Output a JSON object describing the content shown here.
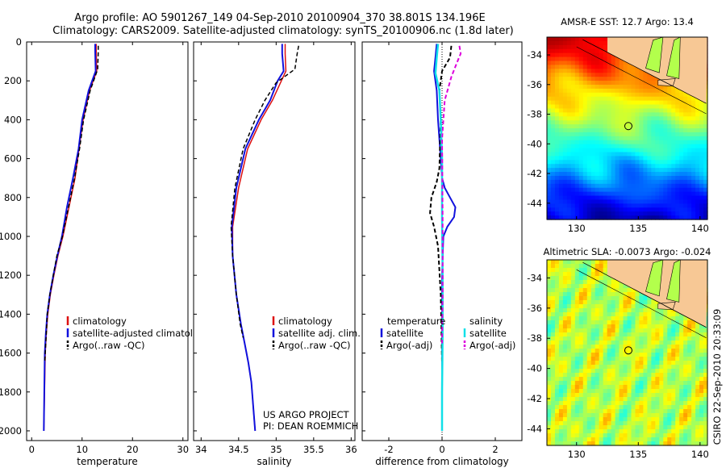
{
  "figure": {
    "title_line1": "Argo profile: AO 5901267_149 04-Sep-2010 20100904_370 38.801S 134.196E",
    "title_line2": "Climatology: CARS2009. Satellite-adjusted climatology: synTS_20100906.nc (1.8d later)",
    "credit": "CSIRO 22-Sep-2010 20:33:09"
  },
  "colors": {
    "climatology": "#dd1111",
    "satellite": "#1111dd",
    "argo": "#000000",
    "salinity_satellite": "#11e0e8",
    "salinity_argo": "#dd00dd",
    "land": "#f7c895"
  },
  "chart_data": [
    {
      "type": "line",
      "xlabel": "temperature",
      "ylabel": "",
      "xlim": [
        -1,
        31
      ],
      "ylim": [
        2050,
        0
      ],
      "xticks": [
        0,
        10,
        20,
        30
      ],
      "xtick_labels": [
        "0",
        "10",
        "20",
        "30"
      ],
      "yticks": [
        0,
        200,
        400,
        600,
        800,
        1000,
        1200,
        1400,
        1600,
        1800,
        2000
      ],
      "ytick_labels": [
        "0",
        "200",
        "400",
        "600",
        "800",
        "1000",
        "1200",
        "1400",
        "1600",
        "1800",
        "2000"
      ],
      "legend": {
        "position": "lower-right",
        "entries": [
          "climatology",
          "satellite-adjusted climatology",
          "Argo(..raw -QC)"
        ]
      },
      "series": [
        {
          "name": "climatology",
          "color": "#dd1111",
          "dash": "",
          "width": 1.5,
          "x": [
            12.8,
            12.8,
            12.9,
            11.5,
            10.2,
            9.4,
            8.6,
            7.4,
            6.2,
            5.2,
            4.4,
            3.7,
            3.2,
            2.9,
            2.7,
            2.55,
            2.4
          ],
          "y": [
            10,
            50,
            150,
            250,
            400,
            550,
            700,
            850,
            1000,
            1100,
            1200,
            1300,
            1400,
            1500,
            1600,
            1800,
            2000
          ]
        },
        {
          "name": "satellite-adjusted climatology",
          "color": "#1111dd",
          "dash": "",
          "width": 2,
          "x": [
            12.6,
            12.6,
            12.7,
            11.3,
            10.0,
            9.3,
            8.2,
            7.0,
            6.0,
            5.1,
            4.3,
            3.6,
            3.1,
            2.8,
            2.6,
            2.5,
            2.4
          ],
          "y": [
            10,
            50,
            150,
            250,
            400,
            550,
            700,
            850,
            1000,
            1100,
            1200,
            1300,
            1400,
            1500,
            1600,
            1800,
            2000
          ]
        },
        {
          "name": "Argo(..raw -QC)",
          "color": "#000000",
          "dash": "5,3",
          "width": 1.5,
          "x": [
            13.2,
            13.2,
            13.1,
            11.6,
            10.3,
            9.5,
            8.5,
            7.3,
            6.1,
            5.0,
            4.3,
            3.6,
            3.1,
            2.9,
            2.7,
            2.6
          ],
          "y": [
            20,
            50,
            140,
            250,
            400,
            550,
            700,
            850,
            1000,
            1100,
            1200,
            1300,
            1400,
            1500,
            1600,
            1650
          ]
        }
      ]
    },
    {
      "type": "line",
      "xlabel": "salinity",
      "ylabel": "",
      "xlim": [
        33.9,
        36.05
      ],
      "ylim": [
        2050,
        0
      ],
      "xticks": [
        34,
        34.5,
        35,
        35.5,
        36
      ],
      "xtick_labels": [
        "34",
        "34.5",
        "35",
        "35.5",
        "36"
      ],
      "legend": {
        "position": "lower-right",
        "entries": [
          "climatology",
          "satellite adj. clim.",
          "Argo(..raw -QC)"
        ]
      },
      "annotation": [
        "US ARGO PROJECT",
        "PI: DEAN ROEMMICH"
      ],
      "series": [
        {
          "name": "climatology",
          "color": "#dd1111",
          "dash": "",
          "width": 1.5,
          "x": [
            35.12,
            35.12,
            35.13,
            35.07,
            34.95,
            34.8,
            34.62,
            34.5,
            34.42,
            34.42,
            34.47,
            34.53,
            34.58,
            34.63,
            34.67,
            34.7,
            34.72
          ],
          "y": [
            10,
            60,
            150,
            200,
            300,
            400,
            550,
            750,
            950,
            1100,
            1300,
            1450,
            1550,
            1650,
            1750,
            1900,
            2000
          ]
        },
        {
          "name": "satellite adj. clim.",
          "color": "#1111dd",
          "dash": "",
          "width": 2,
          "x": [
            35.08,
            35.08,
            35.1,
            35.02,
            34.92,
            34.77,
            34.59,
            34.47,
            34.41,
            34.42,
            34.47,
            34.53,
            34.58,
            34.63,
            34.67,
            34.7,
            34.72
          ],
          "y": [
            10,
            60,
            150,
            200,
            300,
            400,
            550,
            750,
            950,
            1100,
            1300,
            1450,
            1550,
            1650,
            1750,
            1900,
            2000
          ]
        },
        {
          "name": "Argo(..raw -QC)",
          "color": "#000000",
          "dash": "5,3",
          "width": 1.5,
          "x": [
            35.3,
            35.28,
            35.25,
            35.0,
            34.85,
            34.72,
            34.56,
            34.45,
            34.4,
            34.42,
            34.47,
            34.52,
            34.56
          ],
          "y": [
            20,
            60,
            140,
            210,
            300,
            400,
            550,
            750,
            950,
            1100,
            1300,
            1450,
            1520
          ]
        }
      ]
    },
    {
      "type": "line",
      "xlabel": "difference from climatology",
      "ylabel": "",
      "xlim": [
        -3,
        3
      ],
      "ylim": [
        2050,
        0
      ],
      "xticks": [
        -2,
        0,
        2
      ],
      "xtick_labels": [
        "-2",
        "0",
        "2"
      ],
      "reference_line": 0,
      "legend": {
        "position": "lower",
        "entries": [
          "temperature",
          "satellite",
          "Argo(-adj)",
          "salinity",
          "satellite",
          "Argo(-adj)"
        ]
      },
      "series": [
        {
          "name": "satellite",
          "color": "#1111dd",
          "dash": "",
          "width": 2,
          "x": [
            -0.2,
            -0.25,
            -0.3,
            -0.2,
            -0.15,
            -0.05,
            0.0,
            0.1,
            0.3,
            0.5,
            0.45,
            0.2,
            0.05,
            0.0,
            0.0,
            0.0
          ],
          "y": [
            10,
            80,
            150,
            250,
            400,
            600,
            700,
            750,
            800,
            850,
            900,
            950,
            1000,
            1200,
            1600,
            2000
          ]
        },
        {
          "name": "Argo(-adj)",
          "color": "#000000",
          "dash": "5,3",
          "width": 2,
          "x": [
            0.35,
            0.3,
            0.0,
            -0.1,
            -0.05,
            -0.1,
            -0.2,
            -0.4,
            -0.45,
            -0.3,
            -0.15,
            -0.05,
            0.0
          ],
          "y": [
            20,
            80,
            150,
            250,
            400,
            650,
            720,
            800,
            880,
            950,
            1050,
            1300,
            1650
          ]
        },
        {
          "name": "satellite",
          "color": "#11e0e8",
          "dash": "",
          "width": 2.5,
          "x": [
            -0.15,
            -0.2,
            -0.25,
            -0.1,
            -0.05,
            0.0,
            0.0,
            0.02,
            0.02,
            0.0,
            0.0
          ],
          "y": [
            10,
            80,
            160,
            250,
            400,
            600,
            900,
            1200,
            1500,
            1800,
            2000
          ]
        },
        {
          "name": "Argo(-adj)",
          "color": "#dd00dd",
          "dash": "5,3",
          "width": 2,
          "x": [
            0.65,
            0.7,
            0.55,
            0.35,
            0.1,
            0.0,
            0.02,
            0.02,
            0.0
          ],
          "y": [
            20,
            60,
            110,
            180,
            300,
            500,
            900,
            1300,
            1550
          ]
        }
      ]
    },
    {
      "type": "heatmap",
      "title": "AMSR-E SST: 12.7 Argo: 13.4",
      "xlim": [
        127.6,
        140.6
      ],
      "ylim": [
        -45.1,
        -32.8
      ],
      "xticks": [
        130,
        135,
        140
      ],
      "xtick_labels": [
        "130",
        "135",
        "140"
      ],
      "yticks": [
        -34,
        -36,
        -38,
        -40,
        -42,
        -44
      ],
      "ytick_labels": [
        "-34",
        "-36",
        "-38",
        "-40",
        "-42",
        "-44"
      ],
      "marker": {
        "lon": 134.196,
        "lat": -38.801
      },
      "field": "sst"
    },
    {
      "type": "heatmap",
      "title": "Altimetric SLA: -0.0073 Argo: -0.024",
      "xlim": [
        127.6,
        140.6
      ],
      "ylim": [
        -45.1,
        -32.8
      ],
      "xticks": [
        130,
        135,
        140
      ],
      "xtick_labels": [
        "130",
        "135",
        "140"
      ],
      "yticks": [
        -34,
        -36,
        -38,
        -40,
        -42,
        -44
      ],
      "ytick_labels": [
        "-34",
        "-36",
        "-38",
        "-40",
        "-42",
        "-44"
      ],
      "marker": {
        "lon": 134.196,
        "lat": -38.801
      },
      "field": "sla"
    }
  ]
}
